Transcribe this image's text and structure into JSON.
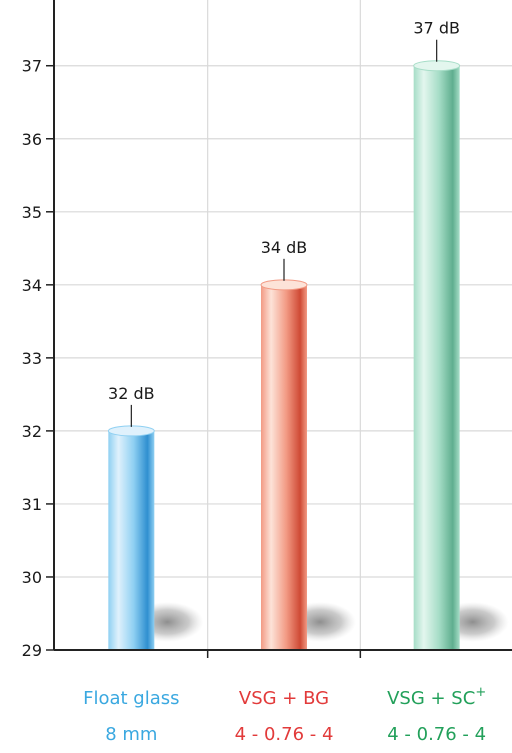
{
  "chart_data": {
    "type": "bar",
    "categories": [
      {
        "line1": "Float glass",
        "line2": "8 mm",
        "color": "#3aa8e0"
      },
      {
        "line1": "VSG + BG",
        "line2": "4 - 0.76 - 4",
        "color": "#e23a3a"
      },
      {
        "line1": "VSG + SC",
        "sup": "+",
        "line2": "4 - 0.76 - 4",
        "color": "#22a05a"
      }
    ],
    "values": [
      32,
      34,
      37
    ],
    "data_labels": [
      "32 dB",
      "34 dB",
      "37 dB"
    ],
    "unit": "dB",
    "ylim": [
      29,
      37.9
    ],
    "yticks": [
      29,
      30,
      31,
      32,
      33,
      34,
      35,
      36,
      37
    ],
    "grid": true,
    "bar_colors": [
      {
        "light": "#dff1fc",
        "mid": "#8fd0f2",
        "dark": "#2f8fd0"
      },
      {
        "light": "#fde3d8",
        "mid": "#f29a84",
        "dark": "#cf4a35"
      },
      {
        "light": "#e3f6ee",
        "mid": "#a6ddc7",
        "dark": "#5fae8f"
      }
    ]
  }
}
